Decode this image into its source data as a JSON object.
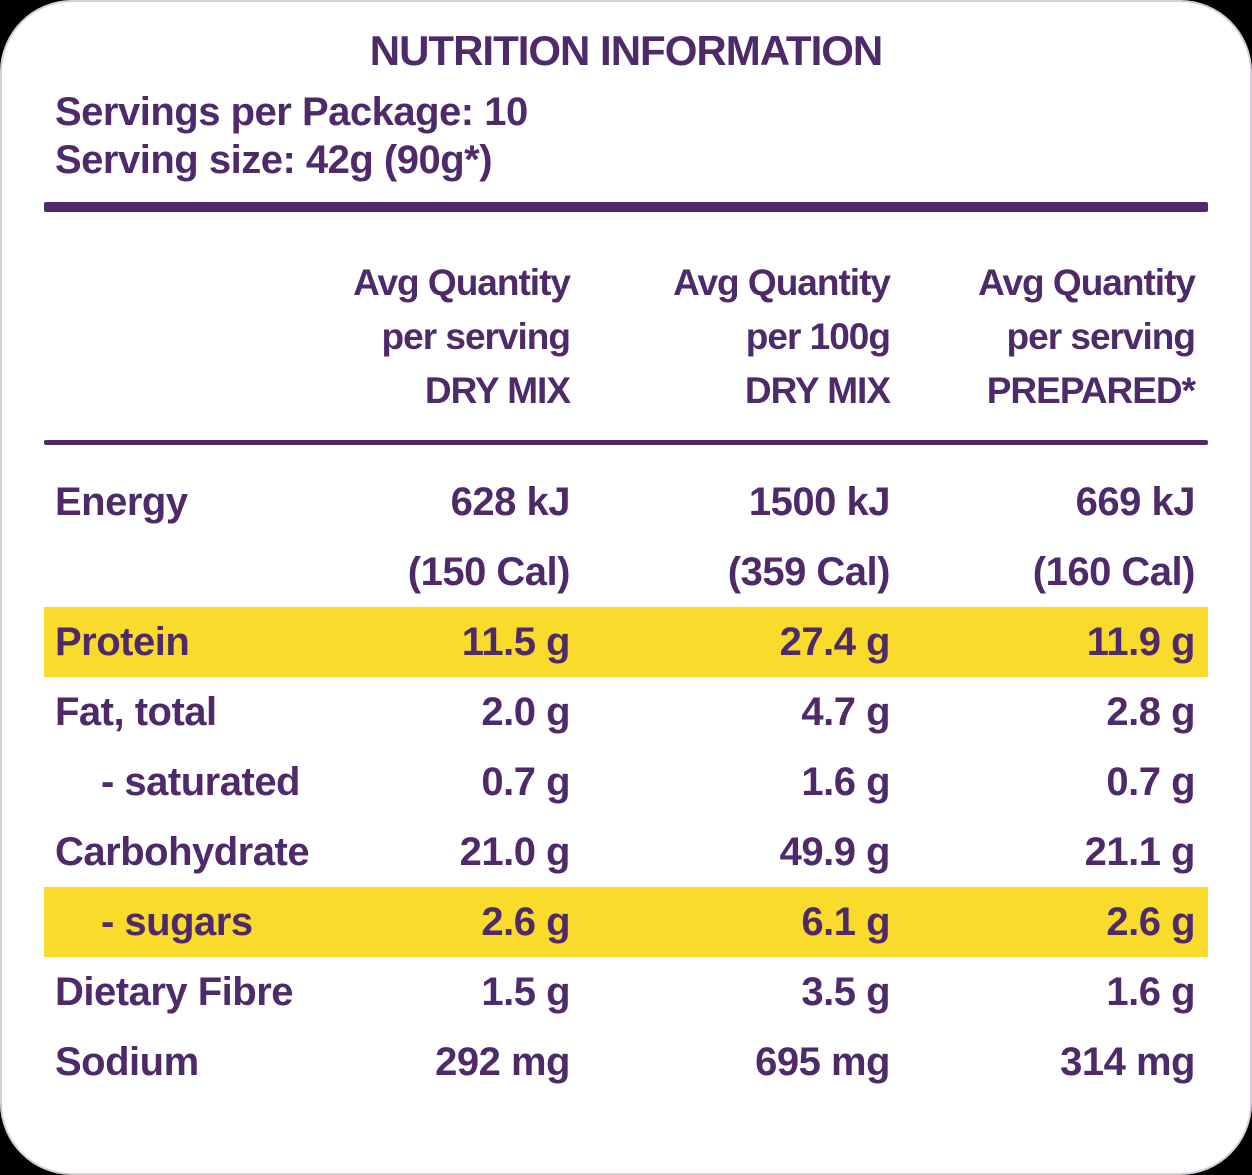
{
  "colors": {
    "text_purple": "#4F2A6B",
    "highlight_yellow": "#F9DC2B",
    "rule_purple": "#4F2A6B",
    "card_background": "#FFFFFF",
    "outer_background": "#000000"
  },
  "header": {
    "title": "NUTRITION INFORMATION",
    "servings_per_package": "Servings per Package: 10",
    "serving_size": "Serving size: 42g (90g*)"
  },
  "table": {
    "columns": [
      {
        "lines": [
          "Avg Quantity",
          "per serving",
          "DRY MIX"
        ]
      },
      {
        "lines": [
          "Avg Quantity",
          "per 100g",
          "DRY MIX"
        ]
      },
      {
        "lines": [
          "Avg Quantity",
          "per serving",
          "PREPARED*"
        ]
      }
    ],
    "rows": [
      {
        "label": "Energy",
        "values": [
          "628 kJ",
          "1500 kJ",
          "669 kJ"
        ],
        "highlight": false,
        "indent": false
      },
      {
        "label": "",
        "values": [
          "(150 Cal)",
          "(359 Cal)",
          "(160 Cal)"
        ],
        "highlight": false,
        "indent": false
      },
      {
        "label": "Protein",
        "values": [
          "11.5 g",
          "27.4 g",
          "11.9 g"
        ],
        "highlight": true,
        "indent": false
      },
      {
        "label": "Fat, total",
        "values": [
          "2.0 g",
          "4.7 g",
          "2.8 g"
        ],
        "highlight": false,
        "indent": false
      },
      {
        "label": "- saturated",
        "values": [
          "0.7 g",
          "1.6 g",
          "0.7 g"
        ],
        "highlight": false,
        "indent": true
      },
      {
        "label": "Carbohydrate",
        "values": [
          "21.0 g",
          "49.9 g",
          "21.1 g"
        ],
        "highlight": false,
        "indent": false
      },
      {
        "label": "- sugars",
        "values": [
          "2.6 g",
          "6.1 g",
          "2.6 g"
        ],
        "highlight": true,
        "indent": true
      },
      {
        "label": "Dietary Fibre",
        "values": [
          "1.5 g",
          "3.5 g",
          "1.6 g"
        ],
        "highlight": false,
        "indent": false
      },
      {
        "label": "Sodium",
        "values": [
          "292 mg",
          "695 mg",
          "314 mg"
        ],
        "highlight": false,
        "indent": false
      }
    ]
  }
}
